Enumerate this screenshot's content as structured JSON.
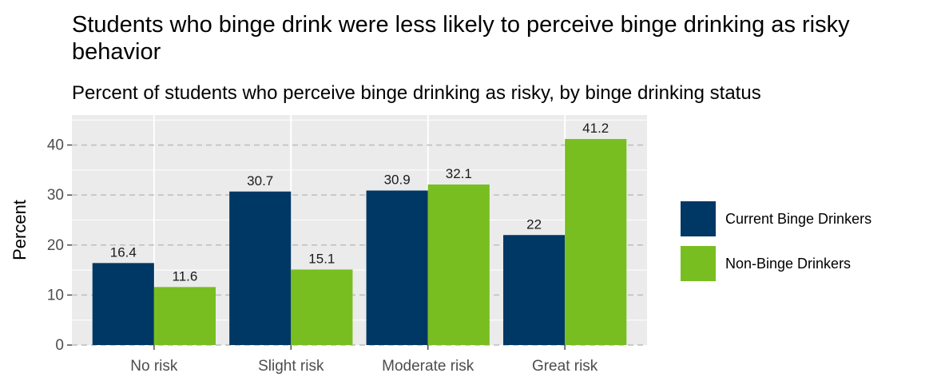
{
  "chart_data": {
    "type": "bar",
    "title": "Students who binge drink were less likely to perceive binge drinking as risky behavior",
    "subtitle": "Percent of students who perceive binge drinking as risky, by binge drinking status",
    "xlabel": "",
    "ylabel": "Percent",
    "categories": [
      "No risk",
      "Slight risk",
      "Moderate risk",
      "Great risk"
    ],
    "series": [
      {
        "name": "Current Binge Drinkers",
        "color": "#003865",
        "values": [
          16.4,
          30.7,
          30.9,
          22
        ],
        "labels": [
          "16.4",
          "30.7",
          "30.9",
          "22"
        ]
      },
      {
        "name": "Non-Binge Drinkers",
        "color": "#78BE20",
        "values": [
          11.6,
          15.1,
          32.1,
          41.2
        ],
        "labels": [
          "11.6",
          "15.1",
          "32.1",
          "41.2"
        ]
      }
    ],
    "ylim": [
      0,
      46
    ],
    "yticks": [
      0,
      10,
      20,
      30,
      40
    ],
    "grid": true,
    "panel_background": "#EBEBEB",
    "legend_position": "right"
  }
}
